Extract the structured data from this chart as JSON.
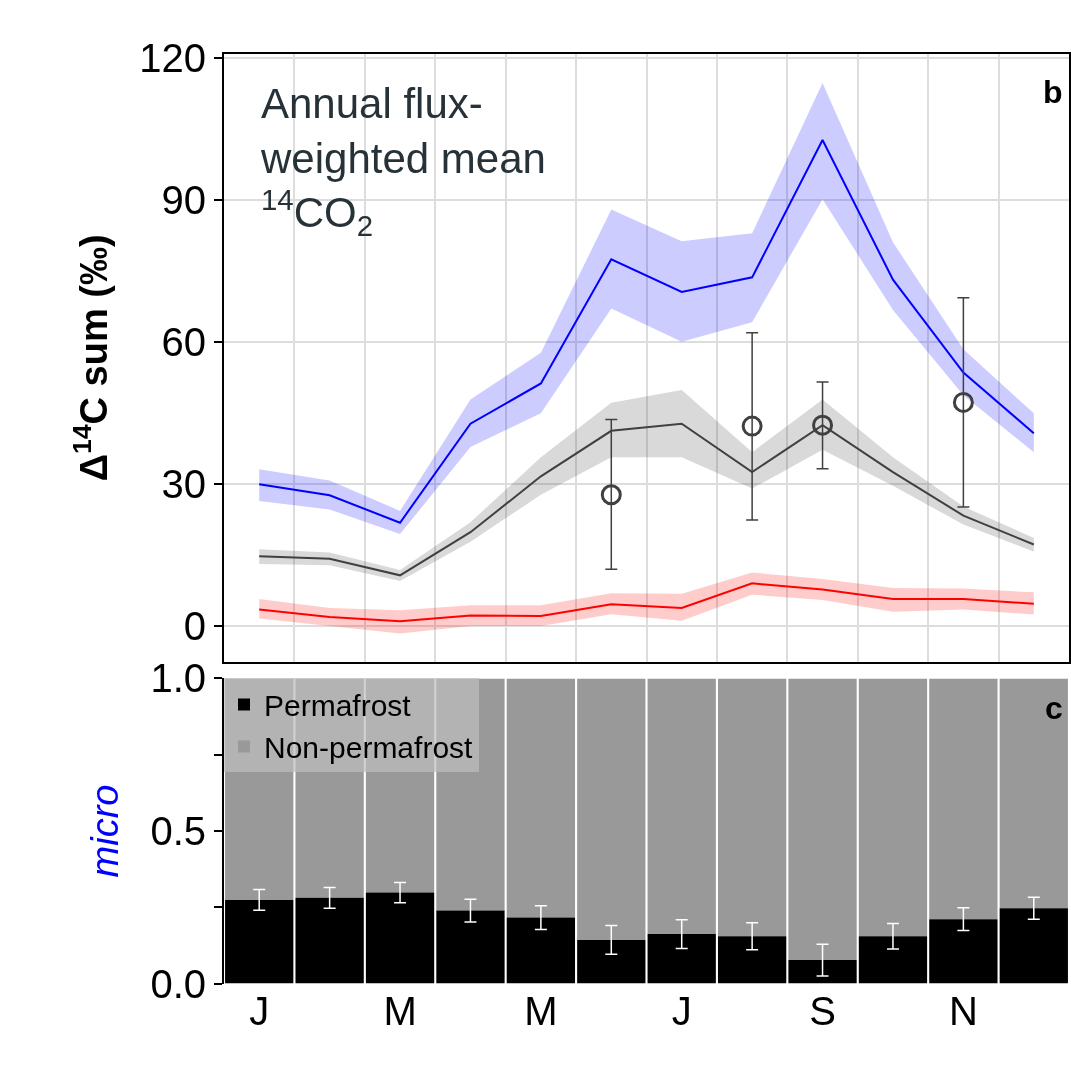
{
  "chart_data": [
    {
      "type": "line",
      "ylabel": "Δ$^{14}$C sum (‰)",
      "categories": [
        null,
        null,
        null,
        null,
        null,
        null,
        null,
        null,
        null,
        null,
        null,
        null
      ],
      "ylim": [
        -7.6,
        120.8
      ],
      "yticks": [
        0,
        30,
        60,
        90,
        120
      ],
      "grid": true,
      "tick_labels": "y",
      "legend": false,
      "annotations": [
        "Annual flux-weighted mean $^{14}$CO$_{2}$",
        "b"
      ],
      "series": [
        {
          "color": "#0000ff",
          "values": [
            29.9,
            27.6,
            21.8,
            42.7,
            51.2,
            77.4,
            70.5,
            73.6,
            102.6,
            73.1,
            53.5,
            40.7
          ],
          "lower": [
            26.4,
            24.6,
            19.4,
            37.8,
            44.9,
            67.0,
            60.0,
            64.1,
            90.1,
            66.7,
            48.7,
            36.7
          ],
          "upper": [
            33.1,
            30.7,
            24.3,
            47.8,
            57.7,
            87.9,
            81.2,
            82.9,
            114.6,
            81.0,
            58.4,
            44.9
          ]
        },
        {
          "color": "#404040",
          "values": [
            14.7,
            14.2,
            10.7,
            19.8,
            31.6,
            41.2,
            42.7,
            32.5,
            42.4,
            32.5,
            23.3,
            17.2
          ],
          "lower": [
            13.1,
            12.8,
            9.5,
            17.8,
            27.7,
            35.6,
            35.6,
            29.0,
            37.2,
            29.6,
            21.4,
            15.7
          ],
          "upper": [
            16.2,
            15.5,
            11.8,
            21.9,
            35.6,
            47.1,
            49.8,
            36.7,
            47.8,
            35.6,
            25.2,
            18.6
          ]
        },
        {
          "color": "#ff0000",
          "values": [
            3.5,
            1.9,
            1.0,
            2.2,
            2.1,
            4.6,
            3.8,
            9.0,
            7.7,
            5.7,
            5.7,
            4.7
          ],
          "lower": [
            1.6,
            0.0,
            -1.6,
            0.0,
            0.0,
            2.5,
            1.1,
            6.6,
            5.5,
            3.0,
            3.5,
            2.4
          ],
          "upper": [
            5.7,
            3.8,
            3.3,
            4.4,
            4.4,
            6.9,
            6.8,
            11.3,
            9.9,
            8.0,
            7.9,
            7.1
          ]
        },
        {
          "type": "scatter",
          "marker": "circle",
          "color": "#404040",
          "values": [
            null,
            null,
            null,
            null,
            null,
            27.7,
            null,
            42.2,
            42.4,
            null,
            47.2,
            null
          ],
          "errors": [
            null,
            null,
            null,
            null,
            null,
            [
              12.0,
              43.6
            ],
            null,
            [
              22.4,
              61.9
            ],
            [
              33.2,
              51.5
            ],
            null,
            [
              25.1,
              69.3
            ],
            null
          ]
        }
      ]
    },
    {
      "type": "bar",
      "stacked": true,
      "ylabel": "micro",
      "categories": [
        "J",
        null,
        "M",
        null,
        "M",
        null,
        "J",
        null,
        "S",
        null,
        "N",
        null
      ],
      "ylim": [
        0,
        1.0
      ],
      "yticks": [
        {
          "value": 0,
          "label": "0.0"
        },
        {
          "value": 0.25,
          "label": null
        },
        {
          "value": 0.5,
          "label": "0.5"
        },
        {
          "value": 0.75,
          "label": null
        },
        {
          "value": 1.0,
          "label": "1.0"
        }
      ],
      "legend": "top left",
      "annotations": [
        "c"
      ],
      "series": [
        {
          "name": "Permafrost",
          "color": "#000000",
          "values": [
            0.274,
            0.281,
            0.298,
            0.239,
            0.216,
            0.143,
            0.162,
            0.155,
            0.077,
            0.155,
            0.211,
            0.247
          ],
          "errors": [
            0.034,
            0.034,
            0.033,
            0.037,
            0.039,
            0.047,
            0.047,
            0.044,
            0.052,
            0.042,
            0.037,
            0.036
          ]
        },
        {
          "name": "Non-permafrost",
          "color": "#999999",
          "values": [
            0.726,
            0.719,
            0.702,
            0.761,
            0.784,
            0.857,
            0.838,
            0.845,
            0.923,
            0.845,
            0.789,
            0.753
          ]
        }
      ]
    }
  ]
}
